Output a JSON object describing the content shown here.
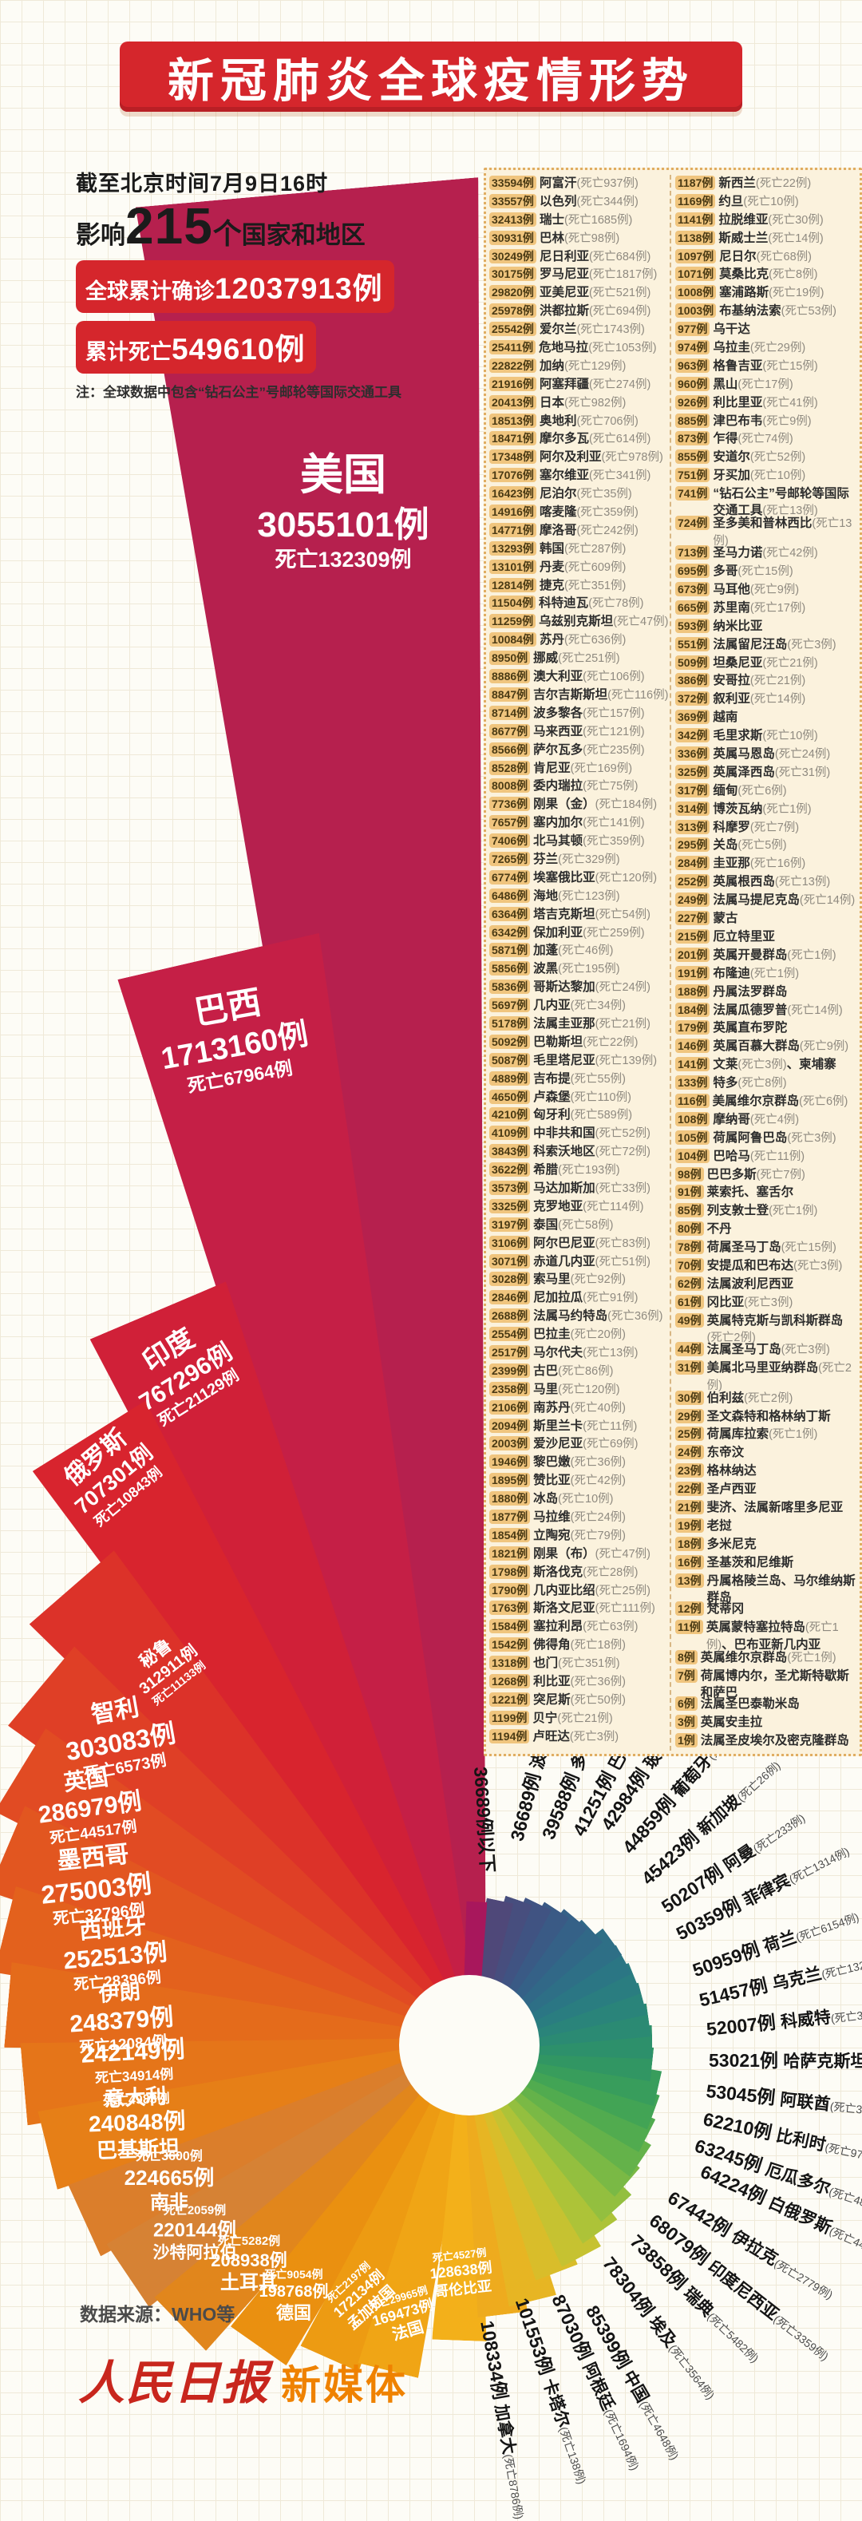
{
  "header": {
    "title": "新冠肺炎全球疫情形势"
  },
  "stats": {
    "as_of": "截至北京时间7月9日16时",
    "impact_prefix": "影响",
    "impact_count": "215",
    "impact_unit": "个",
    "impact_suffix": "国家和地区",
    "confirmed_label": "全球累计确诊",
    "confirmed_value": "12037913例",
    "deaths_label": "累计死亡",
    "deaths_value": "549610例",
    "note": "注：全球数据中包含“钻石公主”号邮轮等国际交通工具"
  },
  "footer": {
    "source": "数据来源：WHO等",
    "logo_main": "人民日报",
    "logo_sub": "新媒体"
  },
  "chart_data": {
    "type": "bar",
    "subtype": "radial-fan-spiral",
    "title": "新冠肺炎全球疫情形势",
    "unit": "例",
    "threshold_label": "36689例以下",
    "threshold_color": "#a8175c",
    "series": [
      {
        "rank": 1,
        "name": "美国",
        "cases": 3055101,
        "deaths": 132309
      },
      {
        "rank": 2,
        "name": "巴西",
        "cases": 1713160,
        "deaths": 67964
      },
      {
        "rank": 3,
        "name": "印度",
        "cases": 767296,
        "deaths": 21129
      },
      {
        "rank": 4,
        "name": "俄罗斯",
        "cases": 707301,
        "deaths": 10843
      },
      {
        "rank": 5,
        "name": "秘鲁",
        "cases": 312911,
        "deaths": 11133
      },
      {
        "rank": 6,
        "name": "智利",
        "cases": 303083,
        "deaths": 6573
      },
      {
        "rank": 7,
        "name": "英国",
        "cases": 286979,
        "deaths": 44517
      },
      {
        "rank": 8,
        "name": "墨西哥",
        "cases": 275003,
        "deaths": 32796
      },
      {
        "rank": 9,
        "name": "西班牙",
        "cases": 252513,
        "deaths": 28396
      },
      {
        "rank": 10,
        "name": "伊朗",
        "cases": 248379,
        "deaths": 12084
      },
      {
        "rank": 11,
        "name": "意大利",
        "cases": 242149,
        "deaths": 34914
      },
      {
        "rank": 12,
        "name": "巴基斯坦",
        "cases": 240848,
        "deaths": 4983
      },
      {
        "rank": 13,
        "name": "南非",
        "cases": 224665,
        "deaths": 3600
      },
      {
        "rank": 14,
        "name": "沙特阿拉伯",
        "cases": 220144,
        "deaths": 2059
      },
      {
        "rank": 15,
        "name": "土耳其",
        "cases": 208938,
        "deaths": 5282
      },
      {
        "rank": 16,
        "name": "德国",
        "cases": 198768,
        "deaths": 9054
      },
      {
        "rank": 17,
        "name": "孟加拉国",
        "cases": 172134,
        "deaths": 2197
      },
      {
        "rank": 18,
        "name": "法国",
        "cases": 169473,
        "deaths": 29965
      },
      {
        "rank": 19,
        "name": "哥伦比亚",
        "cases": 128638,
        "deaths": 4527
      },
      {
        "rank": 20,
        "name": "加拿大",
        "cases": 108334,
        "deaths": 8786
      },
      {
        "rank": 21,
        "name": "卡塔尔",
        "cases": 101553,
        "deaths": 138
      },
      {
        "rank": 22,
        "name": "阿根廷",
        "cases": 87030,
        "deaths": 1694
      },
      {
        "rank": 23,
        "name": "中国",
        "cases": 85399,
        "deaths": 4648
      },
      {
        "rank": 24,
        "name": "埃及",
        "cases": 78304,
        "deaths": 3564
      },
      {
        "rank": 25,
        "name": "瑞典",
        "cases": 73858,
        "deaths": 5482
      },
      {
        "rank": 26,
        "name": "印度尼西亚",
        "cases": 68079,
        "deaths": 3359
      },
      {
        "rank": 27,
        "name": "伊拉克",
        "cases": 67442,
        "deaths": 2779
      },
      {
        "rank": 28,
        "name": "白俄罗斯",
        "cases": 64224,
        "deaths": 443
      },
      {
        "rank": 29,
        "name": "厄瓜多尔",
        "cases": 63245,
        "deaths": 4873
      },
      {
        "rank": 30,
        "name": "比利时",
        "cases": 62210,
        "deaths": 9778
      },
      {
        "rank": 31,
        "name": "阿联酋",
        "cases": 53045,
        "deaths": 327
      },
      {
        "rank": 32,
        "name": "哈萨克斯坦",
        "cases": 53021,
        "deaths": 264
      },
      {
        "rank": 33,
        "name": "科威特",
        "cases": 52007,
        "deaths": 379
      },
      {
        "rank": 34,
        "name": "乌克兰",
        "cases": 51457,
        "deaths": 1323
      },
      {
        "rank": 35,
        "name": "荷兰",
        "cases": 50959,
        "deaths": 6154
      },
      {
        "rank": 36,
        "name": "菲律宾",
        "cases": 50359,
        "deaths": 1314
      },
      {
        "rank": 37,
        "name": "阿曼",
        "cases": 50207,
        "deaths": 233
      },
      {
        "rank": 38,
        "name": "新加坡",
        "cases": 45423,
        "deaths": 26
      },
      {
        "rank": 39,
        "name": "葡萄牙",
        "cases": 44859,
        "deaths": 1631
      },
      {
        "rank": 40,
        "name": "玻利维亚",
        "cases": 42984,
        "deaths": 1577
      },
      {
        "rank": 41,
        "name": "巴拿马",
        "cases": 41251,
        "deaths": 819
      },
      {
        "rank": 42,
        "name": "多米尼加",
        "cases": 39588,
        "deaths": 829
      },
      {
        "rank": 43,
        "name": "波兰",
        "cases": 36689,
        "deaths": 1542
      }
    ],
    "colors": [
      "#b6204e",
      "#c51f46",
      "#d02038",
      "#d8242e",
      "#dc3229",
      "#df3f26",
      "#e14b23",
      "#e25620",
      "#e3611d",
      "#e46b1b",
      "#e57519",
      "#e67f17",
      "#db7e2b",
      "#d68234",
      "#e1861c",
      "#ea9010",
      "#ed9b12",
      "#f0a515",
      "#f3b01a",
      "#eeab1e",
      "#e7b523",
      "#d9bd2a",
      "#c6c231",
      "#adc338",
      "#93bf3f",
      "#7ab945",
      "#64b24a",
      "#51ab4f",
      "#42a455",
      "#389d5c",
      "#319663",
      "#2d906b",
      "#2b8a73",
      "#2a847a",
      "#2a7d80",
      "#2b7684",
      "#2e6f86",
      "#316887",
      "#356187",
      "#3a5a85",
      "#405382",
      "#474e7e",
      "#4f4879"
    ]
  },
  "list": {
    "left_rows": [
      [
        "33594例",
        "阿富汗",
        "(死亡937例)"
      ],
      [
        "33557例",
        "以色列",
        "(死亡344例)"
      ],
      [
        "32413例",
        "瑞士",
        "(死亡1685例)"
      ],
      [
        "30931例",
        "巴林",
        "(死亡98例)"
      ],
      [
        "30249例",
        "尼日利亚",
        "(死亡684例)"
      ],
      [
        "30175例",
        "罗马尼亚",
        "(死亡1817例)"
      ],
      [
        "29820例",
        "亚美尼亚",
        "(死亡521例)"
      ],
      [
        "25978例",
        "洪都拉斯",
        "(死亡694例)"
      ],
      [
        "25542例",
        "爱尔兰",
        "(死亡1743例)"
      ],
      [
        "25411例",
        "危地马拉",
        "(死亡1053例)"
      ],
      [
        "22822例",
        "加纳",
        "(死亡129例)"
      ],
      [
        "21916例",
        "阿塞拜疆",
        "(死亡274例)"
      ],
      [
        "20413例",
        "日本",
        "(死亡982例)"
      ],
      [
        "18513例",
        "奥地利",
        "(死亡706例)"
      ],
      [
        "18471例",
        "摩尔多瓦",
        "(死亡614例)"
      ],
      [
        "17348例",
        "阿尔及利亚",
        "(死亡978例)"
      ],
      [
        "17076例",
        "塞尔维亚",
        "(死亡341例)"
      ],
      [
        "16423例",
        "尼泊尔",
        "(死亡35例)"
      ],
      [
        "14916例",
        "喀麦隆",
        "(死亡359例)"
      ],
      [
        "14771例",
        "摩洛哥",
        "(死亡242例)"
      ],
      [
        "13293例",
        "韩国",
        "(死亡287例)"
      ],
      [
        "13101例",
        "丹麦",
        "(死亡609例)"
      ],
      [
        "12814例",
        "捷克",
        "(死亡351例)"
      ],
      [
        "11504例",
        "科特迪瓦",
        "(死亡78例)"
      ],
      [
        "11259例",
        "乌兹别克斯坦",
        "(死亡47例)"
      ],
      [
        "10084例",
        "苏丹",
        "(死亡636例)"
      ],
      [
        "8950例",
        "挪威",
        "(死亡251例)"
      ],
      [
        "8886例",
        "澳大利亚",
        "(死亡106例)"
      ],
      [
        "8847例",
        "吉尔吉斯斯坦",
        "(死亡116例)"
      ],
      [
        "8714例",
        "波多黎各",
        "(死亡157例)"
      ],
      [
        "8677例",
        "马来西亚",
        "(死亡121例)"
      ],
      [
        "8566例",
        "萨尔瓦多",
        "(死亡235例)"
      ],
      [
        "8528例",
        "肯尼亚",
        "(死亡169例)"
      ],
      [
        "8008例",
        "委内瑞拉",
        "(死亡75例)"
      ],
      [
        "7736例",
        "刚果（金）",
        "(死亡184例)"
      ],
      [
        "7657例",
        "塞内加尔",
        "(死亡141例)"
      ],
      [
        "7406例",
        "北马其顿",
        "(死亡359例)"
      ],
      [
        "7265例",
        "芬兰",
        "(死亡329例)"
      ],
      [
        "6774例",
        "埃塞俄比亚",
        "(死亡120例)"
      ],
      [
        "6486例",
        "海地",
        "(死亡123例)"
      ],
      [
        "6364例",
        "塔吉克斯坦",
        "(死亡54例)"
      ],
      [
        "6342例",
        "保加利亚",
        "(死亡259例)"
      ],
      [
        "5871例",
        "加蓬",
        "(死亡46例)"
      ],
      [
        "5856例",
        "波黑",
        "(死亡195例)"
      ],
      [
        "5836例",
        "哥斯达黎加",
        "(死亡24例)"
      ],
      [
        "5697例",
        "几内亚",
        "(死亡34例)"
      ],
      [
        "5178例",
        "法属圭亚那",
        "(死亡21例)"
      ],
      [
        "5092例",
        "巴勒斯坦",
        "(死亡22例)"
      ],
      [
        "5087例",
        "毛里塔尼亚",
        "(死亡139例)"
      ],
      [
        "4889例",
        "吉布提",
        "(死亡55例)"
      ],
      [
        "4650例",
        "卢森堡",
        "(死亡110例)"
      ],
      [
        "4210例",
        "匈牙利",
        "(死亡589例)"
      ],
      [
        "4109例",
        "中非共和国",
        "(死亡52例)"
      ],
      [
        "3843例",
        "科索沃地区",
        "(死亡72例)"
      ],
      [
        "3622例",
        "希腊",
        "(死亡193例)"
      ],
      [
        "3573例",
        "马达加斯加",
        "(死亡33例)"
      ],
      [
        "3325例",
        "克罗地亚",
        "(死亡114例)"
      ],
      [
        "3197例",
        "泰国",
        "(死亡58例)"
      ],
      [
        "3106例",
        "阿尔巴尼亚",
        "(死亡83例)"
      ],
      [
        "3071例",
        "赤道几内亚",
        "(死亡51例)"
      ],
      [
        "3028例",
        "索马里",
        "(死亡92例)"
      ],
      [
        "2846例",
        "尼加拉瓜",
        "(死亡91例)"
      ],
      [
        "2688例",
        "法属马约特岛",
        "(死亡36例)"
      ],
      [
        "2554例",
        "巴拉圭",
        "(死亡20例)"
      ],
      [
        "2517例",
        "马尔代夫",
        "(死亡13例)"
      ],
      [
        "2399例",
        "古巴",
        "(死亡86例)"
      ],
      [
        "2358例",
        "马里",
        "(死亡120例)"
      ],
      [
        "2106例",
        "南苏丹",
        "(死亡40例)"
      ],
      [
        "2094例",
        "斯里兰卡",
        "(死亡11例)"
      ],
      [
        "2003例",
        "爱沙尼亚",
        "(死亡69例)"
      ],
      [
        "1946例",
        "黎巴嫩",
        "(死亡36例)"
      ],
      [
        "1895例",
        "赞比亚",
        "(死亡42例)"
      ],
      [
        "1880例",
        "冰岛",
        "(死亡10例)"
      ],
      [
        "1877例",
        "马拉维",
        "(死亡24例)"
      ],
      [
        "1854例",
        "立陶宛",
        "(死亡79例)"
      ],
      [
        "1821例",
        "刚果（布）",
        "(死亡47例)"
      ],
      [
        "1798例",
        "斯洛伐克",
        "(死亡28例)"
      ],
      [
        "1790例",
        "几内亚比绍",
        "(死亡25例)"
      ],
      [
        "1763例",
        "斯洛文尼亚",
        "(死亡111例)"
      ],
      [
        "1584例",
        "塞拉利昂",
        "(死亡63例)"
      ],
      [
        "1542例",
        "佛得角",
        "(死亡18例)"
      ],
      [
        "1318例",
        "也门",
        "(死亡351例)"
      ],
      [
        "1268例",
        "利比亚",
        "(死亡36例)"
      ],
      [
        "1221例",
        "突尼斯",
        "(死亡50例)"
      ],
      [
        "1199例",
        "贝宁",
        "(死亡21例)"
      ],
      [
        "1194例",
        "卢旺达",
        "(死亡3例)"
      ]
    ],
    "right_rows": [
      [
        "1187例",
        "新西兰",
        "(死亡22例)"
      ],
      [
        "1169例",
        "约旦",
        "(死亡10例)"
      ],
      [
        "1141例",
        "拉脱维亚",
        "(死亡30例)"
      ],
      [
        "1138例",
        "斯威士兰",
        "(死亡14例)"
      ],
      [
        "1097例",
        "尼日尔",
        "(死亡68例)"
      ],
      [
        "1071例",
        "莫桑比克",
        "(死亡8例)"
      ],
      [
        "1008例",
        "塞浦路斯",
        "(死亡19例)"
      ],
      [
        "1003例",
        "布基纳法索",
        "(死亡53例)"
      ],
      [
        "977例",
        "乌干达",
        ""
      ],
      [
        "974例",
        "乌拉圭",
        "(死亡29例)"
      ],
      [
        "963例",
        "格鲁吉亚",
        "(死亡15例)"
      ],
      [
        "960例",
        "黑山",
        "(死亡17例)"
      ],
      [
        "926例",
        "利比里亚",
        "(死亡41例)"
      ],
      [
        "885例",
        "津巴布韦",
        "(死亡9例)"
      ],
      [
        "873例",
        "乍得",
        "(死亡74例)"
      ],
      [
        "855例",
        "安道尔",
        "(死亡52例)"
      ],
      [
        "751例",
        "牙买加",
        "(死亡10例)"
      ],
      [
        "741例",
        "“钻石公主”号邮轮等国际交通工具",
        "(死亡13例)"
      ],
      [
        "724例",
        "圣多美和普林西比",
        "(死亡13例)"
      ],
      [
        "713例",
        "圣马力诺",
        "(死亡42例)"
      ],
      [
        "695例",
        "多哥",
        "(死亡15例)"
      ],
      [
        "673例",
        "马耳他",
        "(死亡9例)"
      ],
      [
        "665例",
        "苏里南",
        "(死亡17例)"
      ],
      [
        "593例",
        "纳米比亚",
        ""
      ],
      [
        "551例",
        "法属留尼汪岛",
        "(死亡3例)"
      ],
      [
        "509例",
        "坦桑尼亚",
        "(死亡21例)"
      ],
      [
        "386例",
        "安哥拉",
        "(死亡21例)"
      ],
      [
        "372例",
        "叙利亚",
        "(死亡14例)"
      ],
      [
        "369例",
        "越南",
        ""
      ],
      [
        "342例",
        "毛里求斯",
        "(死亡10例)"
      ],
      [
        "336例",
        "英属马恩岛",
        "(死亡24例)"
      ],
      [
        "325例",
        "英属泽西岛",
        "(死亡31例)"
      ],
      [
        "317例",
        "缅甸",
        "(死亡6例)"
      ],
      [
        "314例",
        "博茨瓦纳",
        "(死亡1例)"
      ],
      [
        "313例",
        "科摩罗",
        "(死亡7例)"
      ],
      [
        "295例",
        "关岛",
        "(死亡5例)"
      ],
      [
        "284例",
        "圭亚那",
        "(死亡16例)"
      ],
      [
        "252例",
        "英属根西岛",
        "(死亡13例)"
      ],
      [
        "249例",
        "法属马提尼克岛",
        "(死亡14例)"
      ],
      [
        "227例",
        "蒙古",
        ""
      ],
      [
        "215例",
        "厄立特里亚",
        ""
      ],
      [
        "201例",
        "英属开曼群岛",
        "(死亡1例)"
      ],
      [
        "191例",
        "布隆迪",
        "(死亡1例)"
      ],
      [
        "188例",
        "丹属法罗群岛",
        ""
      ],
      [
        "184例",
        "法属瓜德罗普",
        "(死亡14例)"
      ],
      [
        "179例",
        "英属直布罗陀",
        ""
      ],
      [
        "146例",
        "英属百慕大群岛",
        "(死亡9例)"
      ],
      [
        "141例",
        "文莱",
        "(死亡3例)",
        "、柬埔寨"
      ],
      [
        "133例",
        "特多",
        "(死亡8例)"
      ],
      [
        "116例",
        "美属维尔京群岛",
        "(死亡6例)"
      ],
      [
        "108例",
        "摩纳哥",
        "(死亡4例)"
      ],
      [
        "105例",
        "荷属阿鲁巴岛",
        "(死亡3例)"
      ],
      [
        "104例",
        "巴哈马",
        "(死亡11例)"
      ],
      [
        "98例",
        "巴巴多斯",
        "(死亡7例)"
      ],
      [
        "91例",
        "莱索托、塞舌尔",
        ""
      ],
      [
        "85例",
        "列支敦士登",
        "(死亡1例)"
      ],
      [
        "80例",
        "不丹",
        ""
      ],
      [
        "78例",
        "荷属圣马丁岛",
        "(死亡15例)"
      ],
      [
        "70例",
        "安提瓜和巴布达",
        "(死亡3例)"
      ],
      [
        "62例",
        "法属波利尼西亚",
        ""
      ],
      [
        "61例",
        "冈比亚",
        "(死亡3例)"
      ],
      [
        "49例",
        "英属特克斯与凯科斯群岛",
        "(死亡2例)"
      ],
      [
        "44例",
        "法属圣马丁岛",
        "(死亡3例)"
      ],
      [
        "31例",
        "美属北马里亚纳群岛",
        "(死亡2例)"
      ],
      [
        "30例",
        "伯利兹",
        "(死亡2例)"
      ],
      [
        "29例",
        "圣文森特和格林纳丁斯",
        ""
      ],
      [
        "25例",
        "荷属库拉索",
        "(死亡1例)"
      ],
      [
        "24例",
        "东帝汶",
        ""
      ],
      [
        "23例",
        "格林纳达",
        ""
      ],
      [
        "22例",
        "圣卢西亚",
        ""
      ],
      [
        "21例",
        "斐济、法属新喀里多尼亚",
        ""
      ],
      [
        "19例",
        "老挝",
        ""
      ],
      [
        "18例",
        "多米尼克",
        ""
      ],
      [
        "16例",
        "圣基茨和尼维斯",
        ""
      ],
      [
        "13例",
        "丹属格陵兰岛、马尔维纳斯群岛",
        ""
      ],
      [
        "12例",
        "梵蒂冈",
        ""
      ],
      [
        "11例",
        "英属蒙特塞拉特岛",
        "(死亡1例)",
        "、巴布亚新几内亚"
      ],
      [
        "8例",
        "英属维尔京群岛",
        "(死亡1例)"
      ],
      [
        "7例",
        "荷属博内尔，圣尤斯特歇斯和萨巴",
        ""
      ],
      [
        "6例",
        "法属圣巴泰勒米岛",
        ""
      ],
      [
        "3例",
        "英属安圭拉",
        ""
      ],
      [
        "1例",
        "法属圣皮埃尔及密克隆群岛",
        ""
      ]
    ]
  }
}
